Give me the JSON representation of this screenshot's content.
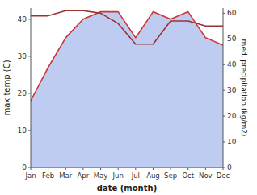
{
  "chart_data": {
    "type": "line",
    "xlabel": "date (month)",
    "ylabel": "max temp (C)",
    "y2label": "med. precipitation (kg/m2)",
    "categories": [
      "Jan",
      "Feb",
      "Mar",
      "Apr",
      "May",
      "Jun",
      "Jul",
      "Aug",
      "Sep",
      "Oct",
      "Nov",
      "Dec"
    ],
    "series": [
      {
        "type": "area",
        "color": "#aabbee",
        "values": [
          18,
          27,
          35,
          40,
          42,
          42,
          35,
          42,
          40,
          42,
          35,
          33
        ]
      },
      {
        "type": "line",
        "color": "#cc3333",
        "values": [
          18,
          27,
          35,
          40,
          42,
          42,
          35,
          42,
          40,
          42,
          35,
          33
        ]
      },
      {
        "type": "line",
        "color": "#993333",
        "axis": "y2",
        "values": [
          59,
          59,
          61,
          61,
          60,
          56,
          48,
          48,
          57,
          57,
          55,
          55
        ]
      }
    ],
    "ylim": [
      0,
      43
    ],
    "yticks": [
      0,
      10,
      20,
      30,
      40
    ],
    "y2lim": [
      0,
      62
    ],
    "y2ticks": [
      0,
      10,
      20,
      30,
      40,
      50,
      60
    ],
    "grid": false
  }
}
